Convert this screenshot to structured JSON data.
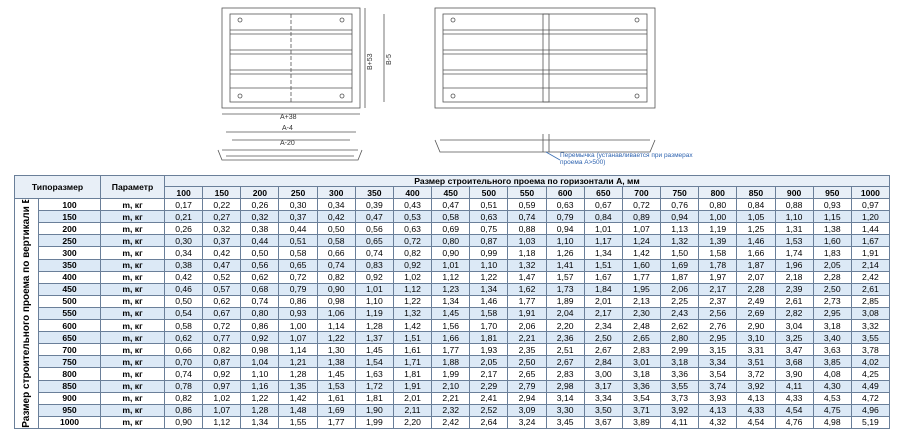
{
  "drawing": {
    "left_labels": {
      "width_outer": "A+38",
      "height_outer": "B+53",
      "height_inner": "B-5",
      "width_a4": "A-4",
      "width_a20": "A-20"
    },
    "note": "Перемычка (устанавливается при размерах проема А>500)"
  },
  "table": {
    "header_type": "Типоразмер",
    "header_param": "Параметр",
    "header_horizontal": "Размер строительного проема по горизонтали А, мм",
    "header_vertical": "Размер строительного проема по вертикали В, мм",
    "columns": [
      "100",
      "150",
      "200",
      "250",
      "300",
      "350",
      "400",
      "450",
      "500",
      "550",
      "600",
      "650",
      "700",
      "750",
      "800",
      "850",
      "900",
      "950",
      "1000"
    ],
    "rows": [
      {
        "size": "100",
        "param": "m, кг",
        "values": [
          "0,17",
          "0,22",
          "0,26",
          "0,30",
          "0,34",
          "0,39",
          "0,43",
          "0,47",
          "0,51",
          "0,59",
          "0,63",
          "0,67",
          "0,72",
          "0,76",
          "0,80",
          "0,84",
          "0,88",
          "0,93",
          "0,97"
        ]
      },
      {
        "size": "150",
        "param": "m, кг",
        "values": [
          "0,21",
          "0,27",
          "0,32",
          "0,37",
          "0,42",
          "0,47",
          "0,53",
          "0,58",
          "0,63",
          "0,74",
          "0,79",
          "0,84",
          "0,89",
          "0,94",
          "1,00",
          "1,05",
          "1,10",
          "1,15",
          "1,20"
        ]
      },
      {
        "size": "200",
        "param": "m, кг",
        "values": [
          "0,26",
          "0,32",
          "0,38",
          "0,44",
          "0,50",
          "0,56",
          "0,63",
          "0,69",
          "0,75",
          "0,88",
          "0,94",
          "1,01",
          "1,07",
          "1,13",
          "1,19",
          "1,25",
          "1,31",
          "1,38",
          "1,44"
        ]
      },
      {
        "size": "250",
        "param": "m, кг",
        "values": [
          "0,30",
          "0,37",
          "0,44",
          "0,51",
          "0,58",
          "0,65",
          "0,72",
          "0,80",
          "0,87",
          "1,03",
          "1,10",
          "1,17",
          "1,24",
          "1,32",
          "1,39",
          "1,46",
          "1,53",
          "1,60",
          "1,67"
        ]
      },
      {
        "size": "300",
        "param": "m, кг",
        "values": [
          "0,34",
          "0,42",
          "0,50",
          "0,58",
          "0,66",
          "0,74",
          "0,82",
          "0,90",
          "0,99",
          "1,18",
          "1,26",
          "1,34",
          "1,42",
          "1,50",
          "1,58",
          "1,66",
          "1,74",
          "1,83",
          "1,91"
        ]
      },
      {
        "size": "350",
        "param": "m, кг",
        "values": [
          "0,38",
          "0,47",
          "0,56",
          "0,65",
          "0,74",
          "0,83",
          "0,92",
          "1,01",
          "1,10",
          "1,32",
          "1,41",
          "1,51",
          "1,60",
          "1,69",
          "1,78",
          "1,87",
          "1,96",
          "2,05",
          "2,14"
        ]
      },
      {
        "size": "400",
        "param": "m, кг",
        "values": [
          "0,42",
          "0,52",
          "0,62",
          "0,72",
          "0,82",
          "0,92",
          "1,02",
          "1,12",
          "1,22",
          "1,47",
          "1,57",
          "1,67",
          "1,77",
          "1,87",
          "1,97",
          "2,07",
          "2,18",
          "2,28",
          "2,42"
        ]
      },
      {
        "size": "450",
        "param": "m, кг",
        "values": [
          "0,46",
          "0,57",
          "0,68",
          "0,79",
          "0,90",
          "1,01",
          "1,12",
          "1,23",
          "1,34",
          "1,62",
          "1,73",
          "1,84",
          "1,95",
          "2,06",
          "2,17",
          "2,28",
          "2,39",
          "2,50",
          "2,61"
        ]
      },
      {
        "size": "500",
        "param": "m, кг",
        "values": [
          "0,50",
          "0,62",
          "0,74",
          "0,86",
          "0,98",
          "1,10",
          "1,22",
          "1,34",
          "1,46",
          "1,77",
          "1,89",
          "2,01",
          "2,13",
          "2,25",
          "2,37",
          "2,49",
          "2,61",
          "2,73",
          "2,85"
        ]
      },
      {
        "size": "550",
        "param": "m, кг",
        "values": [
          "0,54",
          "0,67",
          "0,80",
          "0,93",
          "1,06",
          "1,19",
          "1,32",
          "1,45",
          "1,58",
          "1,91",
          "2,04",
          "2,17",
          "2,30",
          "2,43",
          "2,56",
          "2,69",
          "2,82",
          "2,95",
          "3,08"
        ]
      },
      {
        "size": "600",
        "param": "m, кг",
        "values": [
          "0,58",
          "0,72",
          "0,86",
          "1,00",
          "1,14",
          "1,28",
          "1,42",
          "1,56",
          "1,70",
          "2,06",
          "2,20",
          "2,34",
          "2,48",
          "2,62",
          "2,76",
          "2,90",
          "3,04",
          "3,18",
          "3,32"
        ]
      },
      {
        "size": "650",
        "param": "m, кг",
        "values": [
          "0,62",
          "0,77",
          "0,92",
          "1,07",
          "1,22",
          "1,37",
          "1,51",
          "1,66",
          "1,81",
          "2,21",
          "2,36",
          "2,50",
          "2,65",
          "2,80",
          "2,95",
          "3,10",
          "3,25",
          "3,40",
          "3,55"
        ]
      },
      {
        "size": "700",
        "param": "m, кг",
        "values": [
          "0,66",
          "0,82",
          "0,98",
          "1,14",
          "1,30",
          "1,45",
          "1,61",
          "1,77",
          "1,93",
          "2,35",
          "2,51",
          "2,67",
          "2,83",
          "2,99",
          "3,15",
          "3,31",
          "3,47",
          "3,63",
          "3,78"
        ]
      },
      {
        "size": "750",
        "param": "m, кг",
        "values": [
          "0,70",
          "0,87",
          "1,04",
          "1,21",
          "1,38",
          "1,54",
          "1,71",
          "1,88",
          "2,05",
          "2,50",
          "2,67",
          "2,84",
          "3,01",
          "3,18",
          "3,34",
          "3,51",
          "3,68",
          "3,85",
          "4,02"
        ]
      },
      {
        "size": "800",
        "param": "m, кг",
        "values": [
          "0,74",
          "0,92",
          "1,10",
          "1,28",
          "1,45",
          "1,63",
          "1,81",
          "1,99",
          "2,17",
          "2,65",
          "2,83",
          "3,00",
          "3,18",
          "3,36",
          "3,54",
          "3,72",
          "3,90",
          "4,08",
          "4,25"
        ]
      },
      {
        "size": "850",
        "param": "m, кг",
        "values": [
          "0,78",
          "0,97",
          "1,16",
          "1,35",
          "1,53",
          "1,72",
          "1,91",
          "2,10",
          "2,29",
          "2,79",
          "2,98",
          "3,17",
          "3,36",
          "3,55",
          "3,74",
          "3,92",
          "4,11",
          "4,30",
          "4,49"
        ]
      },
      {
        "size": "900",
        "param": "m, кг",
        "values": [
          "0,82",
          "1,02",
          "1,22",
          "1,42",
          "1,61",
          "1,81",
          "2,01",
          "2,21",
          "2,41",
          "2,94",
          "3,14",
          "3,34",
          "3,54",
          "3,73",
          "3,93",
          "4,13",
          "4,33",
          "4,53",
          "4,72"
        ]
      },
      {
        "size": "950",
        "param": "m, кг",
        "values": [
          "0,86",
          "1,07",
          "1,28",
          "1,48",
          "1,69",
          "1,90",
          "2,11",
          "2,32",
          "2,52",
          "3,09",
          "3,30",
          "3,50",
          "3,71",
          "3,92",
          "4,13",
          "4,33",
          "4,54",
          "4,75",
          "4,96"
        ]
      },
      {
        "size": "1000",
        "param": "m, кг",
        "values": [
          "0,90",
          "1,12",
          "1,34",
          "1,55",
          "1,77",
          "1,99",
          "2,20",
          "2,42",
          "2,64",
          "3,24",
          "3,45",
          "3,67",
          "3,89",
          "4,11",
          "4,32",
          "4,54",
          "4,76",
          "4,98",
          "5,19"
        ]
      }
    ]
  }
}
